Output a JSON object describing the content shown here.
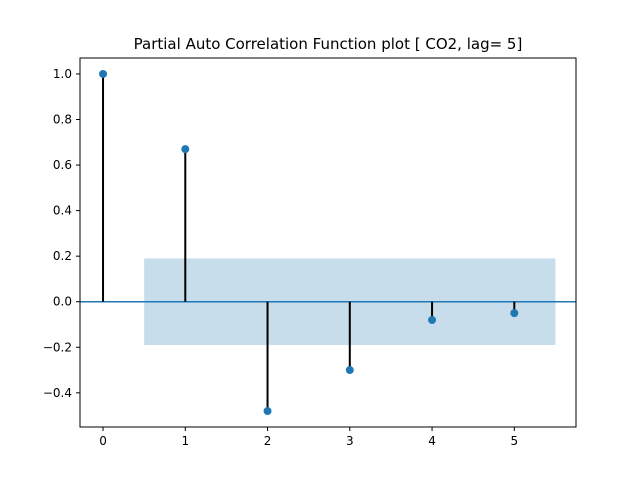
{
  "chart_data": {
    "type": "stem",
    "title": "Partial Auto Correlation Function plot [ CO2, lag= 5]",
    "xlabel": "",
    "ylabel": "",
    "x": [
      0,
      1,
      2,
      3,
      4,
      5
    ],
    "values": [
      1.0,
      0.67,
      -0.48,
      -0.3,
      -0.08,
      -0.05
    ],
    "confidence_band": {
      "x_range": [
        0.5,
        5.5
      ],
      "y_range": [
        -0.19,
        0.19
      ]
    },
    "xlim": [
      -0.28,
      5.75
    ],
    "ylim": [
      -0.55,
      1.07
    ],
    "xticks": [
      0,
      1,
      2,
      3,
      4,
      5
    ],
    "xtick_labels": [
      "0",
      "1",
      "2",
      "3",
      "4",
      "5"
    ],
    "yticks": [
      -0.4,
      -0.2,
      0.0,
      0.2,
      0.4,
      0.6,
      0.8,
      1.0
    ],
    "ytick_labels": [
      "−0.4",
      "−0.2",
      "0.0",
      "0.2",
      "0.4",
      "0.6",
      "0.8",
      "1.0"
    ],
    "grid": false,
    "colors": {
      "marker": "#1f77b4",
      "stem": "#000000",
      "zero_line": "#1f77b4",
      "band": "#1f77b4"
    }
  }
}
